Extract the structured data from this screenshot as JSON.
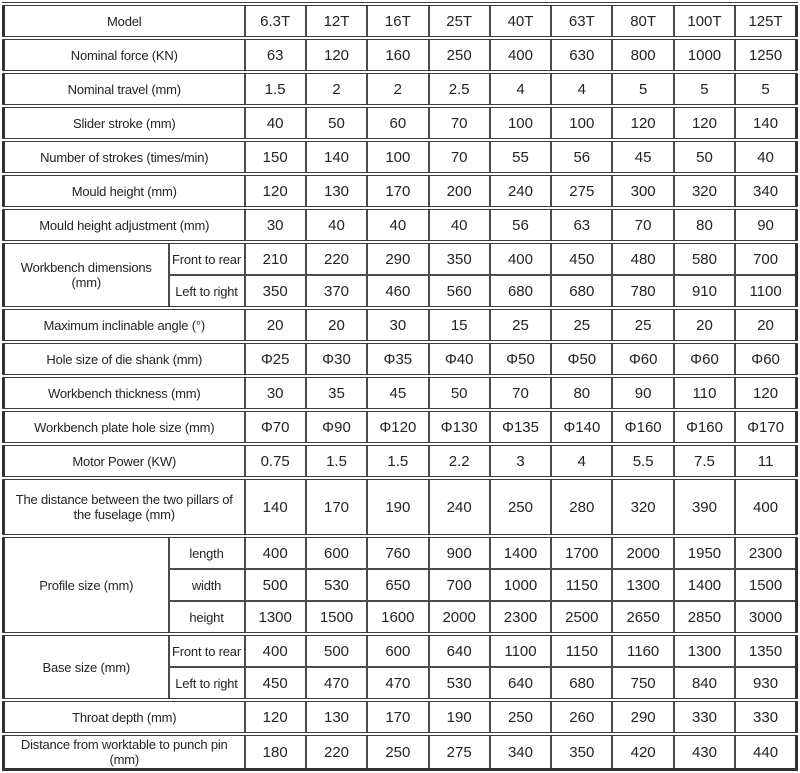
{
  "colors": {
    "border": "#3c3c3c",
    "outer_border": "#303030",
    "text": "#242424",
    "background": "#ffffff"
  },
  "table": {
    "header": {
      "label": "Model",
      "values": [
        "6.3T",
        "12T",
        "16T",
        "25T",
        "40T",
        "63T",
        "80T",
        "100T",
        "125T"
      ]
    },
    "rows": [
      {
        "label": "Nominal force (KN)",
        "values": [
          "63",
          "120",
          "160",
          "250",
          "400",
          "630",
          "800",
          "1000",
          "1250"
        ]
      },
      {
        "label": "Nominal travel (mm)",
        "values": [
          "1.5",
          "2",
          "2",
          "2.5",
          "4",
          "4",
          "5",
          "5",
          "5"
        ]
      },
      {
        "label": "Slider stroke (mm)",
        "values": [
          "40",
          "50",
          "60",
          "70",
          "100",
          "100",
          "120",
          "120",
          "140"
        ]
      },
      {
        "label": "Number of strokes (times/min)",
        "values": [
          "150",
          "140",
          "100",
          "70",
          "55",
          "56",
          "45",
          "50",
          "40"
        ]
      },
      {
        "label": "Mould height (mm)",
        "values": [
          "120",
          "130",
          "170",
          "200",
          "240",
          "275",
          "300",
          "320",
          "340"
        ]
      },
      {
        "label": "Mould height adjustment (mm)",
        "values": [
          "30",
          "40",
          "40",
          "40",
          "56",
          "63",
          "70",
          "80",
          "90"
        ]
      },
      {
        "group": "Workbench dimensions (mm)",
        "subrows": [
          {
            "label": "Front to rear",
            "values": [
              "210",
              "220",
              "290",
              "350",
              "400",
              "450",
              "480",
              "580",
              "700"
            ]
          },
          {
            "label": "Left to right",
            "values": [
              "350",
              "370",
              "460",
              "560",
              "680",
              "680",
              "780",
              "910",
              "1100"
            ]
          }
        ]
      },
      {
        "label": "Maximum inclinable angle (°)",
        "values": [
          "20",
          "20",
          "30",
          "15",
          "25",
          "25",
          "25",
          "20",
          "20"
        ]
      },
      {
        "label": "Hole size of die shank (mm)",
        "values": [
          "Φ25",
          "Φ30",
          "Φ35",
          "Φ40",
          "Φ50",
          "Φ50",
          "Φ60",
          "Φ60",
          "Φ60"
        ]
      },
      {
        "label": "Workbench thickness (mm)",
        "values": [
          "30",
          "35",
          "45",
          "50",
          "70",
          "80",
          "90",
          "110",
          "120"
        ]
      },
      {
        "label": "Workbench plate hole size (mm)",
        "values": [
          "Φ70",
          "Φ90",
          "Φ120",
          "Φ130",
          "Φ135",
          "Φ140",
          "Φ160",
          "Φ160",
          "Φ170"
        ]
      },
      {
        "label": "Motor Power (KW)",
        "values": [
          "0.75",
          "1.5",
          "1.5",
          "2.2",
          "3",
          "4",
          "5.5",
          "7.5",
          "11"
        ]
      },
      {
        "label": "The distance between the two pillars of the fuselage (mm)",
        "tall": true,
        "values": [
          "140",
          "170",
          "190",
          "240",
          "250",
          "280",
          "320",
          "390",
          "400"
        ]
      },
      {
        "group": "Profile size (mm)",
        "subrows": [
          {
            "label": "length",
            "values": [
              "400",
              "600",
              "760",
              "900",
              "1400",
              "1700",
              "2000",
              "1950",
              "2300"
            ]
          },
          {
            "label": "width",
            "values": [
              "500",
              "530",
              "650",
              "700",
              "1000",
              "1150",
              "1300",
              "1400",
              "1500"
            ]
          },
          {
            "label": "height",
            "values": [
              "1300",
              "1500",
              "1600",
              "2000",
              "2300",
              "2500",
              "2650",
              "2850",
              "3000"
            ]
          }
        ]
      },
      {
        "group": "Base size (mm)",
        "subrows": [
          {
            "label": "Front to rear",
            "values": [
              "400",
              "500",
              "600",
              "640",
              "1100",
              "1150",
              "1160",
              "1300",
              "1350"
            ]
          },
          {
            "label": "Left to right",
            "values": [
              "450",
              "470",
              "470",
              "530",
              "640",
              "680",
              "750",
              "840",
              "930"
            ]
          }
        ]
      },
      {
        "label": "Throat depth (mm)",
        "values": [
          "120",
          "130",
          "170",
          "190",
          "250",
          "260",
          "290",
          "330",
          "330"
        ]
      },
      {
        "label": "Distance from worktable to punch pin (mm)",
        "values": [
          "180",
          "220",
          "250",
          "275",
          "340",
          "350",
          "420",
          "430",
          "440"
        ]
      }
    ]
  }
}
